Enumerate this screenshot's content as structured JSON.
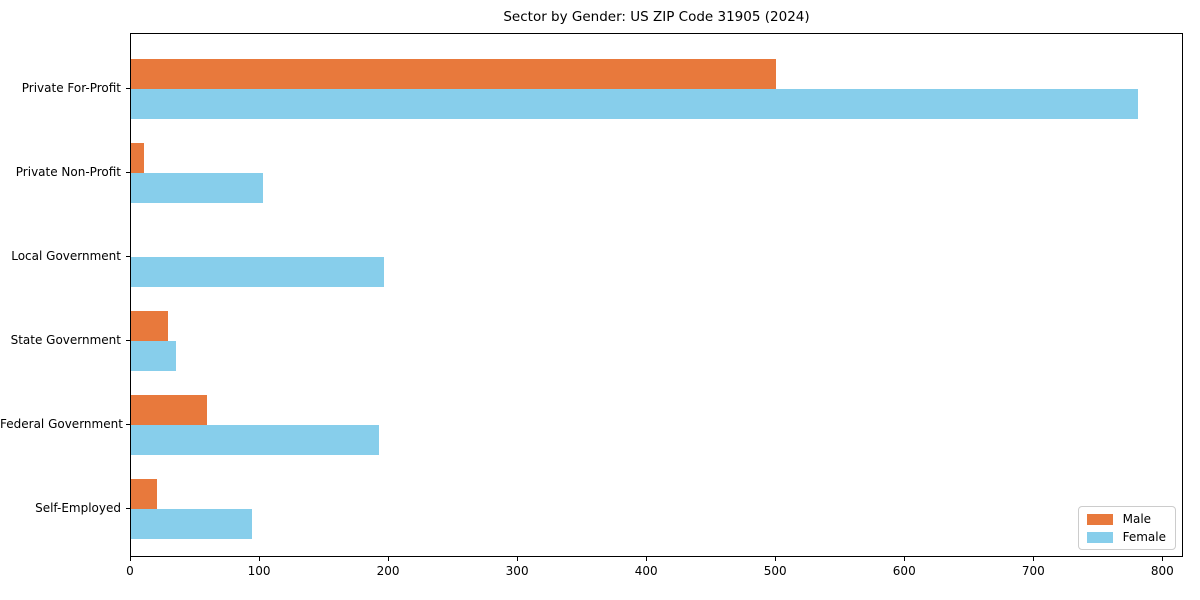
{
  "chart_data": {
    "type": "bar",
    "orientation": "horizontal",
    "title": "Sector by Gender: US ZIP Code 31905 (2024)",
    "categories": [
      "Private For-Profit",
      "Private Non-Profit",
      "Local Government",
      "State Government",
      "Federal Government",
      "Self-Employed"
    ],
    "series": [
      {
        "name": "Male",
        "color": "#E8793C",
        "values": [
          500,
          10,
          0,
          29,
          59,
          20
        ]
      },
      {
        "name": "Female",
        "color": "#87CEEB",
        "values": [
          780,
          102,
          196,
          35,
          192,
          94
        ]
      }
    ],
    "xlabel": "",
    "ylabel": "",
    "xlim": [
      0,
      816
    ],
    "xticks": [
      0,
      100,
      200,
      300,
      400,
      500,
      600,
      700,
      800
    ],
    "grid": false,
    "legend_position": "lower right",
    "background_color": "#ffffff",
    "axis_color": "#000000"
  }
}
